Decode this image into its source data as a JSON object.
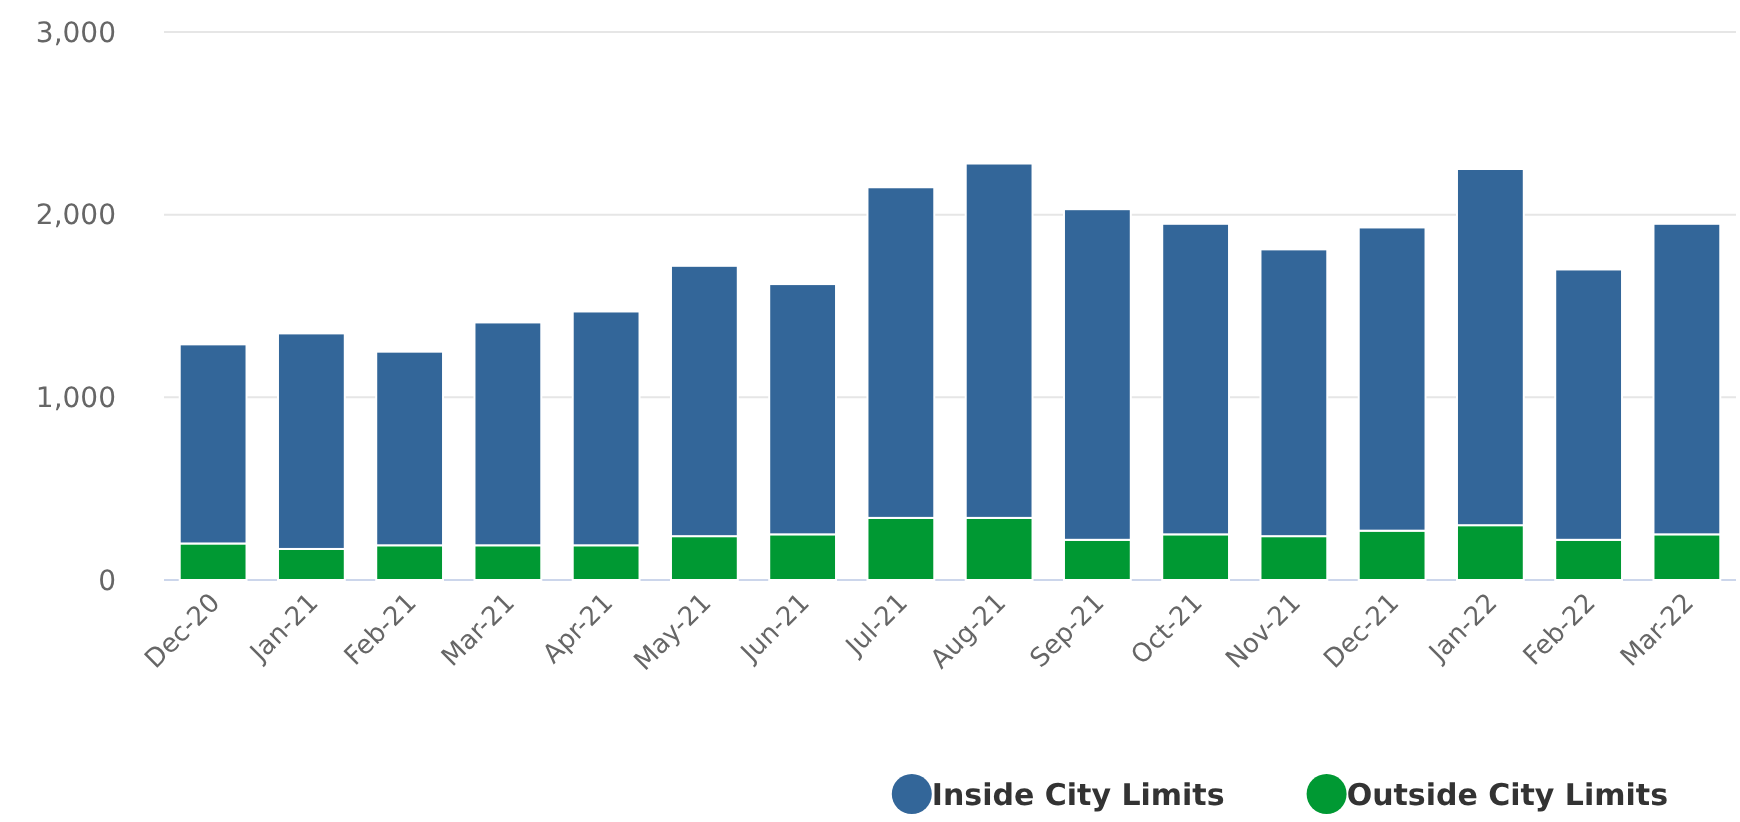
{
  "chart_data": {
    "type": "bar",
    "stacked": true,
    "categories": [
      "Dec-20",
      "Jan-21",
      "Feb-21",
      "Mar-21",
      "Apr-21",
      "May-21",
      "Jun-21",
      "Jul-21",
      "Aug-21",
      "Sep-21",
      "Oct-21",
      "Nov-21",
      "Dec-21",
      "Jan-22",
      "Feb-22",
      "Mar-22"
    ],
    "series": [
      {
        "name": "Outside City Limits",
        "color": "#009933",
        "values": [
          200,
          170,
          190,
          190,
          190,
          240,
          250,
          340,
          340,
          220,
          250,
          240,
          270,
          300,
          220,
          250
        ]
      },
      {
        "name": "Inside City Limits",
        "color": "#336699",
        "values": [
          1090,
          1180,
          1060,
          1220,
          1280,
          1480,
          1370,
          1810,
          1940,
          1810,
          1700,
          1570,
          1660,
          1950,
          1480,
          1700
        ]
      }
    ],
    "ylim": [
      0,
      3000
    ],
    "yticks": [
      {
        "value": 0,
        "label": "0"
      },
      {
        "value": 1000,
        "label": "1,000"
      },
      {
        "value": 2000,
        "label": "2,000"
      },
      {
        "value": 3000,
        "label": "3,000"
      }
    ],
    "grid": "y",
    "legend": "bottom right"
  }
}
